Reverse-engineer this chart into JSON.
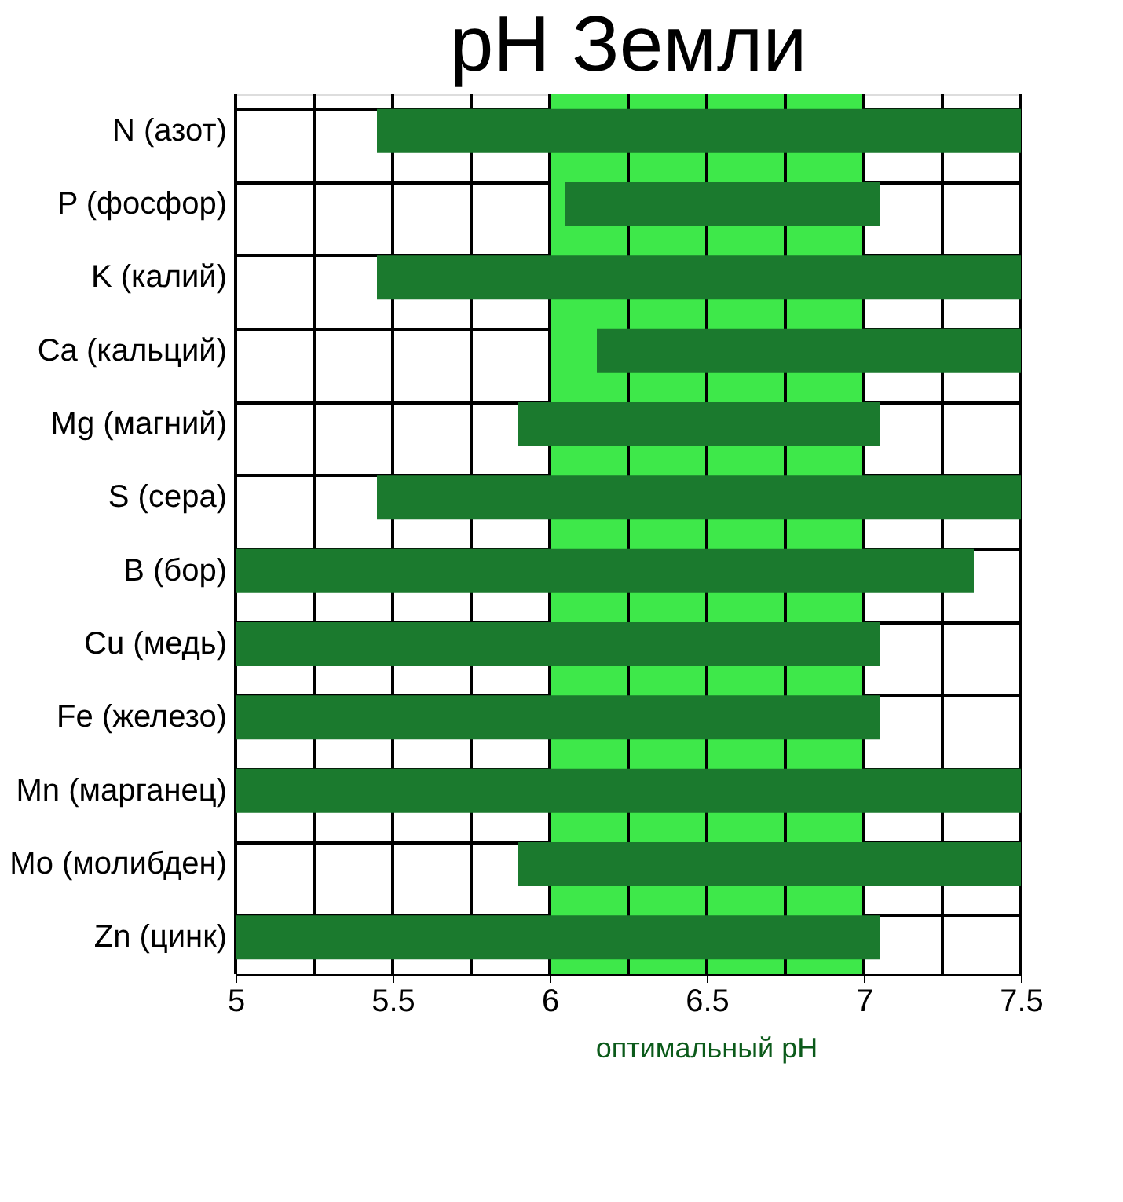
{
  "chart_data": {
    "type": "bar",
    "orientation": "horizontal",
    "title": "pH  Земли",
    "categories": [
      "N (азот)",
      "P (фосфор)",
      "K  (калий)",
      "Ca (кальций)",
      "Mg (магний)",
      "S (сера)",
      "B (бор)",
      "Cu (медь)",
      "Fe (железо)",
      "Mn (марганец)",
      "Mo (молибден)",
      "Zn (цинк)"
    ],
    "base": [
      5.45,
      6.05,
      5.45,
      6.15,
      5.9,
      5.45,
      5,
      5,
      5,
      5,
      5.9,
      5
    ],
    "values": [
      2.05,
      1.0,
      2.05,
      1.35,
      1.15,
      2.05,
      2.35,
      2.05,
      2.05,
      2.5,
      1.6,
      2.05
    ],
    "color": "#1b7a2e",
    "xlim": [
      5,
      7.5
    ],
    "xticks": [
      5,
      5.5,
      6,
      6.5,
      7,
      7.5
    ],
    "bands": [
      {
        "axis": "x",
        "from": 6,
        "to": 7,
        "label": "оптимальный pH",
        "color": "#3ee84a"
      }
    ],
    "grid": true,
    "legend": false
  }
}
